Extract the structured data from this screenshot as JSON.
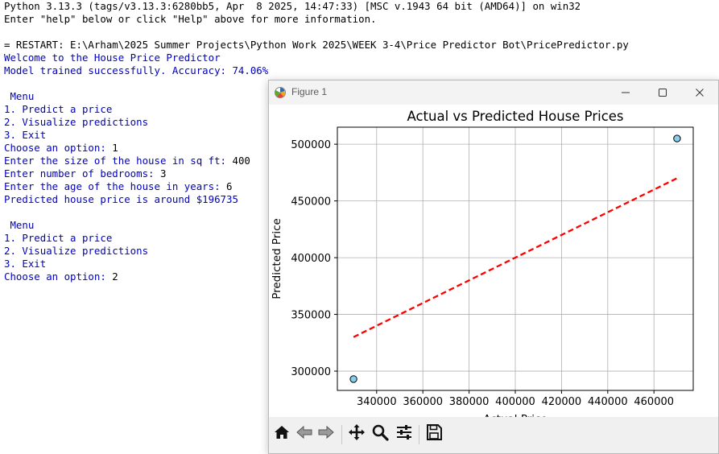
{
  "console": {
    "lines": [
      {
        "text": "Python 3.13.3 (tags/v3.13.3:6280bb5, Apr  8 2025, 14:47:33) [MSC v.1943 64 bit (AMD64)] on win32",
        "color": "black"
      },
      {
        "text": "Enter \"help\" below or click \"Help\" above for more information.",
        "color": "black"
      },
      {
        "text": "",
        "color": "black"
      },
      {
        "text": "= RESTART: E:\\Arham\\2025 Summer Projects\\Python Work 2025\\WEEK 3-4\\Price Predictor Bot\\PricePredictor.py",
        "color": "black"
      },
      {
        "text": "Welcome to the House Price Predictor",
        "color": "blue"
      },
      {
        "text": "Model trained successfully. Accuracy: 74.06%",
        "color": "blue"
      },
      {
        "text": "",
        "color": "black"
      },
      {
        "text": " Menu",
        "color": "blue"
      },
      {
        "text": "1. Predict a price",
        "color": "blue"
      },
      {
        "text": "2. Visualize predictions",
        "color": "blue"
      },
      {
        "text": "3. Exit",
        "color": "blue"
      },
      {
        "prompt": "Choose an option: ",
        "input": "1"
      },
      {
        "prompt": "Enter the size of the house in sq ft: ",
        "input": "400"
      },
      {
        "prompt": "Enter number of bedrooms: ",
        "input": "3"
      },
      {
        "prompt": "Enter the age of the house in years: ",
        "input": "6"
      },
      {
        "text": "Predicted house price is around $196735",
        "color": "blue"
      },
      {
        "text": "",
        "color": "black"
      },
      {
        "text": " Menu",
        "color": "blue"
      },
      {
        "text": "1. Predict a price",
        "color": "blue"
      },
      {
        "text": "2. Visualize predictions",
        "color": "blue"
      },
      {
        "text": "3. Exit",
        "color": "blue"
      },
      {
        "prompt": "Choose an option: ",
        "input": "2"
      }
    ]
  },
  "figure_window": {
    "title": "Figure 1",
    "controls": [
      "minimize-icon",
      "maximize-icon",
      "close-icon"
    ],
    "toolbar": [
      "home-icon",
      "back-icon",
      "forward-icon",
      "pan-icon",
      "zoom-icon",
      "configure-subplots-icon",
      "save-icon"
    ]
  },
  "chart_data": {
    "type": "scatter",
    "title": "Actual vs Predicted House Prices",
    "xlabel": "Actual Price",
    "ylabel": "Predicted Price",
    "xlim": [
      323000,
      477000
    ],
    "ylim": [
      283000,
      515000
    ],
    "xticks": [
      340000,
      360000,
      380000,
      400000,
      420000,
      440000,
      460000
    ],
    "yticks": [
      300000,
      350000,
      400000,
      450000,
      500000
    ],
    "grid": true,
    "series": [
      {
        "kind": "scatter",
        "x": [
          330000,
          470000
        ],
        "y": [
          293000,
          505000
        ],
        "color": "#87CEEB",
        "edgecolor": "#000000"
      },
      {
        "kind": "line",
        "style": "dashed",
        "x": [
          330000,
          470000
        ],
        "y": [
          330000,
          470000
        ],
        "color": "#ff0000"
      }
    ]
  }
}
